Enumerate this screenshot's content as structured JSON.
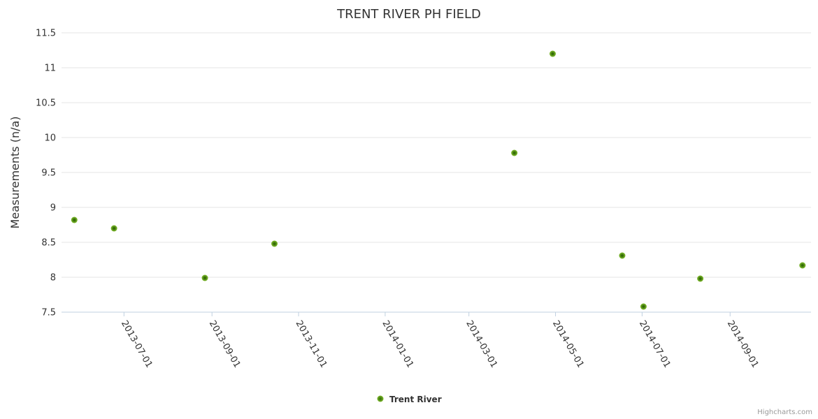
{
  "title": "TRENT RIVER PH FIELD",
  "legend": {
    "label": "Trent River"
  },
  "credits": "Highcharts.com",
  "colors": {
    "background": "#ffffff",
    "title_text": "#333333",
    "label_text": "#333333",
    "grid_line": "#e6e6e6",
    "axis_line": "#c0d0e0",
    "marker_center": "#356b08",
    "marker_mid": "#4e8a14",
    "marker_edge": "#7fb92c",
    "credits_text": "#999999"
  },
  "chart_data": {
    "type": "scatter",
    "title": "TRENT RIVER PH FIELD",
    "xlabel": "",
    "ylabel": "Measurements (n/a)",
    "x_axis_type": "datetime",
    "xlim": [
      "2013-05-18",
      "2014-10-28"
    ],
    "ylim": [
      7.5,
      11.5
    ],
    "y_ticks": [
      7.5,
      8,
      8.5,
      9,
      9.5,
      10,
      10.5,
      11,
      11.5
    ],
    "x_ticks": [
      "2013-07-01",
      "2013-09-01",
      "2013-11-01",
      "2014-01-01",
      "2014-03-01",
      "2014-05-01",
      "2014-07-01",
      "2014-09-01"
    ],
    "grid": "horizontal-only",
    "legend_position": "bottom-center",
    "series": [
      {
        "name": "Trent River",
        "points": [
          {
            "date": "2013-05-27",
            "value": 8.82
          },
          {
            "date": "2013-06-24",
            "value": 8.7
          },
          {
            "date": "2013-08-27",
            "value": 7.99
          },
          {
            "date": "2013-10-15",
            "value": 8.48
          },
          {
            "date": "2014-04-02",
            "value": 9.78
          },
          {
            "date": "2014-04-29",
            "value": 11.2
          },
          {
            "date": "2014-06-17",
            "value": 8.31
          },
          {
            "date": "2014-07-02",
            "value": 7.58
          },
          {
            "date": "2014-08-11",
            "value": 7.98
          },
          {
            "date": "2014-10-22",
            "value": 8.17
          }
        ]
      }
    ]
  }
}
